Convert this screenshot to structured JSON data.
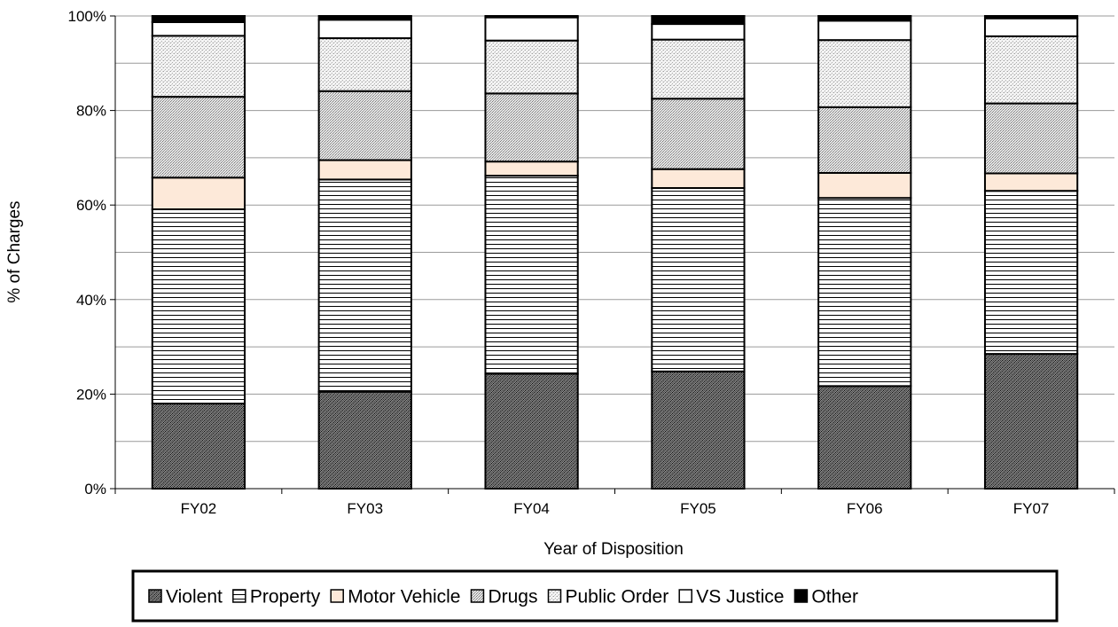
{
  "chart_data": {
    "type": "bar",
    "stacked": true,
    "percent_scale": true,
    "title": "",
    "xlabel": "Year of Disposition",
    "ylabel": "% of Charges",
    "ylim": [
      0,
      100
    ],
    "y_ticks": [
      "0%",
      "20%",
      "40%",
      "60%",
      "80%",
      "100%"
    ],
    "grid": true,
    "legend_position": "bottom",
    "categories": [
      "FY02",
      "FY03",
      "FY04",
      "FY05",
      "FY06",
      "FY07"
    ],
    "series": [
      {
        "name": "Violent",
        "pattern": "dense-dark-dots",
        "values": [
          18.0,
          20.5,
          24.3,
          24.8,
          21.7,
          28.5
        ]
      },
      {
        "name": "Property",
        "pattern": "horizontal-lines",
        "values": [
          41.1,
          44.9,
          41.9,
          38.8,
          39.8,
          34.5
        ]
      },
      {
        "name": "Motor Vehicle",
        "pattern": "solid-peach",
        "values": [
          6.7,
          4.1,
          3.0,
          4.0,
          5.3,
          3.7
        ]
      },
      {
        "name": "Drugs",
        "pattern": "medium-gray-dots",
        "values": [
          17.1,
          14.6,
          14.4,
          14.9,
          13.9,
          14.8
        ]
      },
      {
        "name": "Public Order",
        "pattern": "light-gray-dots",
        "values": [
          12.9,
          11.2,
          11.2,
          12.5,
          14.2,
          14.2
        ]
      },
      {
        "name": "VS Justice",
        "pattern": "solid-white",
        "values": [
          2.9,
          3.9,
          4.9,
          3.3,
          4.1,
          3.8
        ]
      },
      {
        "name": "Other",
        "pattern": "solid-black",
        "values": [
          1.3,
          0.8,
          0.3,
          1.7,
          1.0,
          0.5
        ]
      }
    ]
  }
}
